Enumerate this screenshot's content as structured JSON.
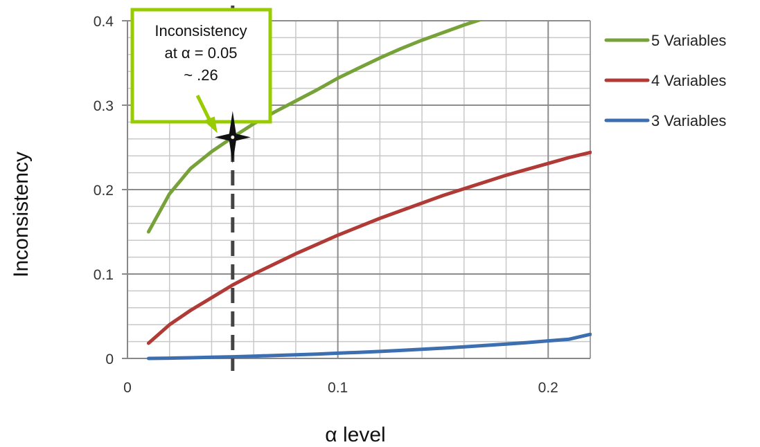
{
  "chart_data": {
    "type": "line",
    "xlabel": "α level",
    "ylabel": "Inconsistency",
    "xlim": [
      0,
      0.22
    ],
    "ylim": [
      0,
      0.4
    ],
    "x_ticks": [
      "0",
      "0.1",
      "0.2"
    ],
    "x_tick_values": [
      0,
      0.1,
      0.2
    ],
    "y_ticks": [
      "0",
      "0.1",
      "0.2",
      "0.3",
      "0.4"
    ],
    "y_tick_values": [
      0,
      0.1,
      0.2,
      0.3,
      0.4
    ],
    "grid": true,
    "legend_position": "right",
    "x": [
      0.01,
      0.02,
      0.03,
      0.04,
      0.05,
      0.06,
      0.07,
      0.08,
      0.09,
      0.1,
      0.11,
      0.12,
      0.13,
      0.14,
      0.15,
      0.16,
      0.17,
      0.18,
      0.19,
      0.2,
      0.21,
      0.22
    ],
    "series": [
      {
        "name": "5 Variables",
        "color": "#77a23a",
        "values": [
          0.15,
          0.195,
          0.225,
          0.245,
          0.262,
          0.278,
          0.292,
          0.305,
          0.318,
          0.332,
          0.344,
          0.356,
          0.367,
          0.377,
          0.386,
          0.395,
          0.403,
          0.41,
          0.416,
          0.421,
          null,
          null
        ]
      },
      {
        "name": "4 Variables",
        "color": "#b03a36",
        "values": [
          0.018,
          0.04,
          0.057,
          0.072,
          0.087,
          0.1,
          0.112,
          0.124,
          0.135,
          0.146,
          0.156,
          0.166,
          0.175,
          0.184,
          0.193,
          0.201,
          0.209,
          0.217,
          0.224,
          0.231,
          0.238,
          0.244
        ]
      },
      {
        "name": "3 Variables",
        "color": "#3d6fb0",
        "values": [
          0,
          0.0003,
          0.0008,
          0.0014,
          0.002,
          0.0027,
          0.0035,
          0.0043,
          0.0052,
          0.0062,
          0.0072,
          0.0083,
          0.0095,
          0.0108,
          0.0122,
          0.0137,
          0.0153,
          0.017,
          0.0188,
          0.0208,
          0.0228,
          0.0285
        ]
      }
    ],
    "reference_line": {
      "x": 0.05,
      "color": "#444444"
    },
    "marker": {
      "x": 0.05,
      "y": 0.262
    },
    "annotation": {
      "lines": [
        "Inconsistency",
        "at α = 0.05",
        "~ .26"
      ],
      "border_color": "#99cc00"
    }
  }
}
